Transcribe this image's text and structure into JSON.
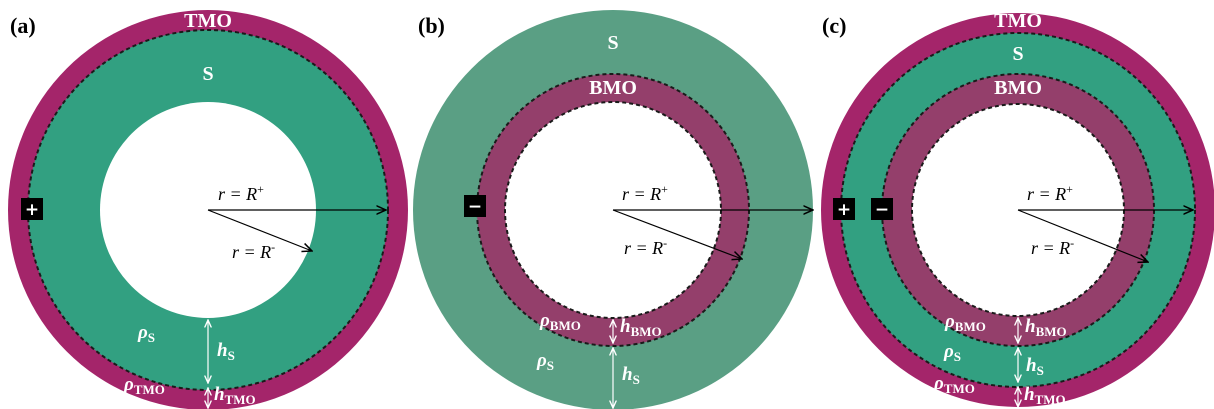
{
  "colors": {
    "tmo": "#a4256a",
    "s": "#32a081",
    "s_outer_b": "#5a9f84",
    "bmo": "#943f6b",
    "dash": "#1a1a1a",
    "arrow": "#000000",
    "dim": "#ffffff"
  },
  "panels": [
    {
      "id": "a",
      "label": "(a)",
      "layers": {
        "top": "TMO",
        "mid": "S"
      },
      "sign": "+",
      "r_plus": "r = R",
      "r_plus_sup": "+",
      "r_minus": "r = R",
      "r_minus_sup": "-",
      "rho_s": "ρ",
      "rho_s_sub": "S",
      "rho_tmo": "ρ",
      "rho_tmo_sub": "TMO",
      "h_s": "h",
      "h_s_sub": "S",
      "h_tmo": "h",
      "h_tmo_sub": "TMO"
    },
    {
      "id": "b",
      "label": "(b)",
      "layers": {
        "top": "S",
        "mid": "BMO"
      },
      "sign": "−",
      "r_plus": "r = R",
      "r_plus_sup": "+",
      "r_minus": "r = R",
      "r_minus_sup": "-",
      "rho_bmo": "ρ",
      "rho_bmo_sub": "BMO",
      "rho_s": "ρ",
      "rho_s_sub": "S",
      "h_bmo": "h",
      "h_bmo_sub": "BMO",
      "h_s": "h",
      "h_s_sub": "S"
    },
    {
      "id": "c",
      "label": "(c)",
      "layers": {
        "top": "TMO",
        "mid": "S",
        "inner": "BMO"
      },
      "sign_plus": "+",
      "sign_minus": "−",
      "r_plus": "r = R",
      "r_plus_sup": "+",
      "r_minus": "r = R",
      "r_minus_sup": "-",
      "rho_bmo": "ρ",
      "rho_bmo_sub": "BMO",
      "rho_s": "ρ",
      "rho_s_sub": "S",
      "rho_tmo": "ρ",
      "rho_tmo_sub": "TMO",
      "h_bmo": "h",
      "h_bmo_sub": "BMO",
      "h_s": "h",
      "h_s_sub": "S",
      "h_tmo": "h",
      "h_tmo_sub": "TMO"
    }
  ]
}
